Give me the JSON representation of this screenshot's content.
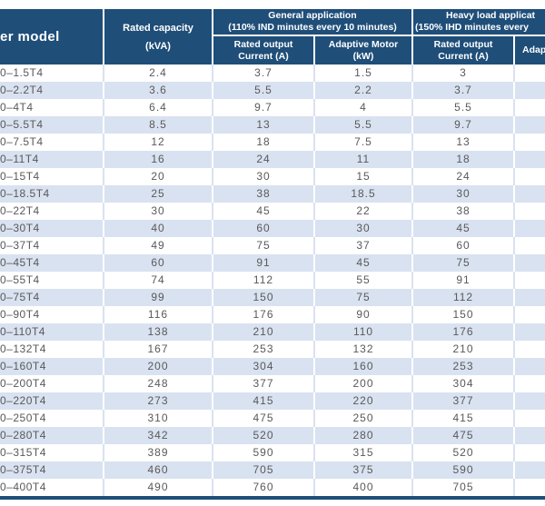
{
  "table": {
    "header": {
      "model": "er model",
      "rated_capacity_l1": "Rated capacity",
      "rated_capacity_l2": "(kVA)",
      "general_l1": "General application",
      "general_l2": "(110% IND minutes every 10 minutes)",
      "heavy_l1": "Heavy load applicat",
      "heavy_l2": "(150% IHD minutes every",
      "gen_current_l1": "Rated output",
      "gen_current_l2": "Current (A)",
      "gen_motor_l1": "Adaptive Motor",
      "gen_motor_l2": "(kW)",
      "heavy_current_l1": "Rated output",
      "heavy_current_l2": "Current (A)",
      "heavy_motor_cut": "Adap"
    },
    "rows": [
      [
        "0–1.5T4",
        "2.4",
        "3.7",
        "1.5",
        "3",
        ""
      ],
      [
        "0–2.2T4",
        "3.6",
        "5.5",
        "2.2",
        "3.7",
        ""
      ],
      [
        "0–4T4",
        "6.4",
        "9.7",
        "4",
        "5.5",
        ""
      ],
      [
        "0–5.5T4",
        "8.5",
        "13",
        "5.5",
        "9.7",
        ""
      ],
      [
        "0–7.5T4",
        "12",
        "18",
        "7.5",
        "13",
        ""
      ],
      [
        "0–11T4",
        "16",
        "24",
        "11",
        "18",
        ""
      ],
      [
        "0–15T4",
        "20",
        "30",
        "15",
        "24",
        ""
      ],
      [
        "0–18.5T4",
        "25",
        "38",
        "18.5",
        "30",
        ""
      ],
      [
        "0–22T4",
        "30",
        "45",
        "22",
        "38",
        ""
      ],
      [
        "0–30T4",
        "40",
        "60",
        "30",
        "45",
        ""
      ],
      [
        "0–37T4",
        "49",
        "75",
        "37",
        "60",
        ""
      ],
      [
        "0–45T4",
        "60",
        "91",
        "45",
        "75",
        ""
      ],
      [
        "0–55T4",
        "74",
        "112",
        "55",
        "91",
        ""
      ],
      [
        "0–75T4",
        "99",
        "150",
        "75",
        "112",
        ""
      ],
      [
        "0–90T4",
        "116",
        "176",
        "90",
        "150",
        ""
      ],
      [
        "0–110T4",
        "138",
        "210",
        "110",
        "176",
        ""
      ],
      [
        "0–132T4",
        "167",
        "253",
        "132",
        "210",
        ""
      ],
      [
        "0–160T4",
        "200",
        "304",
        "160",
        "253",
        ""
      ],
      [
        "0–200T4",
        "248",
        "377",
        "200",
        "304",
        ""
      ],
      [
        "0–220T4",
        "273",
        "415",
        "220",
        "377",
        ""
      ],
      [
        "0–250T4",
        "310",
        "475",
        "250",
        "415",
        ""
      ],
      [
        "0–280T4",
        "342",
        "520",
        "280",
        "475",
        ""
      ],
      [
        "0–315T4",
        "389",
        "590",
        "315",
        "520",
        ""
      ],
      [
        "0–375T4",
        "460",
        "705",
        "375",
        "590",
        ""
      ],
      [
        "0–400T4",
        "490",
        "760",
        "400",
        "705",
        ""
      ]
    ]
  },
  "colors": {
    "header_navy": "#1F4E79",
    "band_blue": "#D9E2F0",
    "body_text": "#595959",
    "header_text": "#FFFFFF",
    "bottom_bar": "#1F4E79"
  }
}
